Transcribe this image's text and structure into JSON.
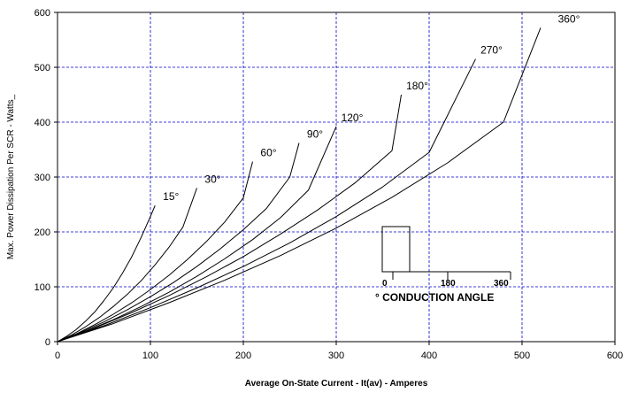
{
  "chart_data": {
    "type": "line",
    "title": "",
    "xlabel": "Average On-State Current - It(av) - Amperes",
    "ylabel": "Max. Power Dissipation Per SCR - Watts_",
    "xlim": [
      0,
      600
    ],
    "ylim": [
      0,
      600
    ],
    "x_ticks": [
      "0",
      "100",
      "200",
      "300",
      "400",
      "500",
      "600"
    ],
    "y_ticks": [
      "0",
      "100",
      "200",
      "300",
      "400",
      "500",
      "600"
    ],
    "grid": true,
    "grid_style": "dashed",
    "grid_color": "#0000cc",
    "series": [
      {
        "name": "15°",
        "x": [
          0,
          10,
          20,
          30,
          40,
          50,
          60,
          70,
          80,
          90,
          100,
          105
        ],
        "y": [
          0,
          10,
          22,
          37,
          54,
          75,
          98,
          125,
          155,
          190,
          228,
          248
        ]
      },
      {
        "name": "30°",
        "x": [
          0,
          15,
          30,
          45,
          60,
          75,
          90,
          105,
          120,
          135,
          150
        ],
        "y": [
          0,
          12,
          27,
          44,
          64,
          86,
          111,
          140,
          172,
          209,
          280
        ]
      },
      {
        "name": "60°",
        "x": [
          0,
          20,
          40,
          60,
          80,
          100,
          120,
          140,
          160,
          180,
          200,
          210
        ],
        "y": [
          0,
          14,
          31,
          50,
          71,
          95,
          121,
          150,
          182,
          218,
          262,
          328
        ]
      },
      {
        "name": "90°",
        "x": [
          0,
          25,
          50,
          75,
          100,
          125,
          150,
          175,
          200,
          225,
          250,
          260
        ],
        "y": [
          0,
          17,
          36,
          58,
          82,
          108,
          137,
          169,
          204,
          243,
          300,
          362
        ]
      },
      {
        "name": "120°",
        "x": [
          0,
          30,
          60,
          90,
          120,
          150,
          180,
          210,
          240,
          270,
          300
        ],
        "y": [
          0,
          19,
          40,
          64,
          90,
          119,
          151,
          186,
          226,
          276,
          392
        ]
      },
      {
        "name": "180°",
        "x": [
          0,
          40,
          80,
          120,
          160,
          200,
          240,
          280,
          320,
          360,
          370
        ],
        "y": [
          0,
          25,
          53,
          84,
          118,
          155,
          196,
          240,
          289,
          348,
          450
        ]
      },
      {
        "name": "270°",
        "x": [
          0,
          50,
          100,
          150,
          200,
          250,
          300,
          350,
          400,
          450
        ],
        "y": [
          0,
          29,
          62,
          98,
          137,
          180,
          228,
          282,
          345,
          515
        ]
      },
      {
        "name": "360°",
        "x": [
          0,
          60,
          120,
          180,
          240,
          300,
          360,
          420,
          480,
          520
        ],
        "y": [
          0,
          33,
          71,
          112,
          157,
          207,
          263,
          326,
          400,
          572
        ]
      }
    ]
  },
  "inset": {
    "tick_labels": [
      "0",
      "180",
      "360"
    ],
    "caption": "° CONDUCTION ANGLE"
  }
}
